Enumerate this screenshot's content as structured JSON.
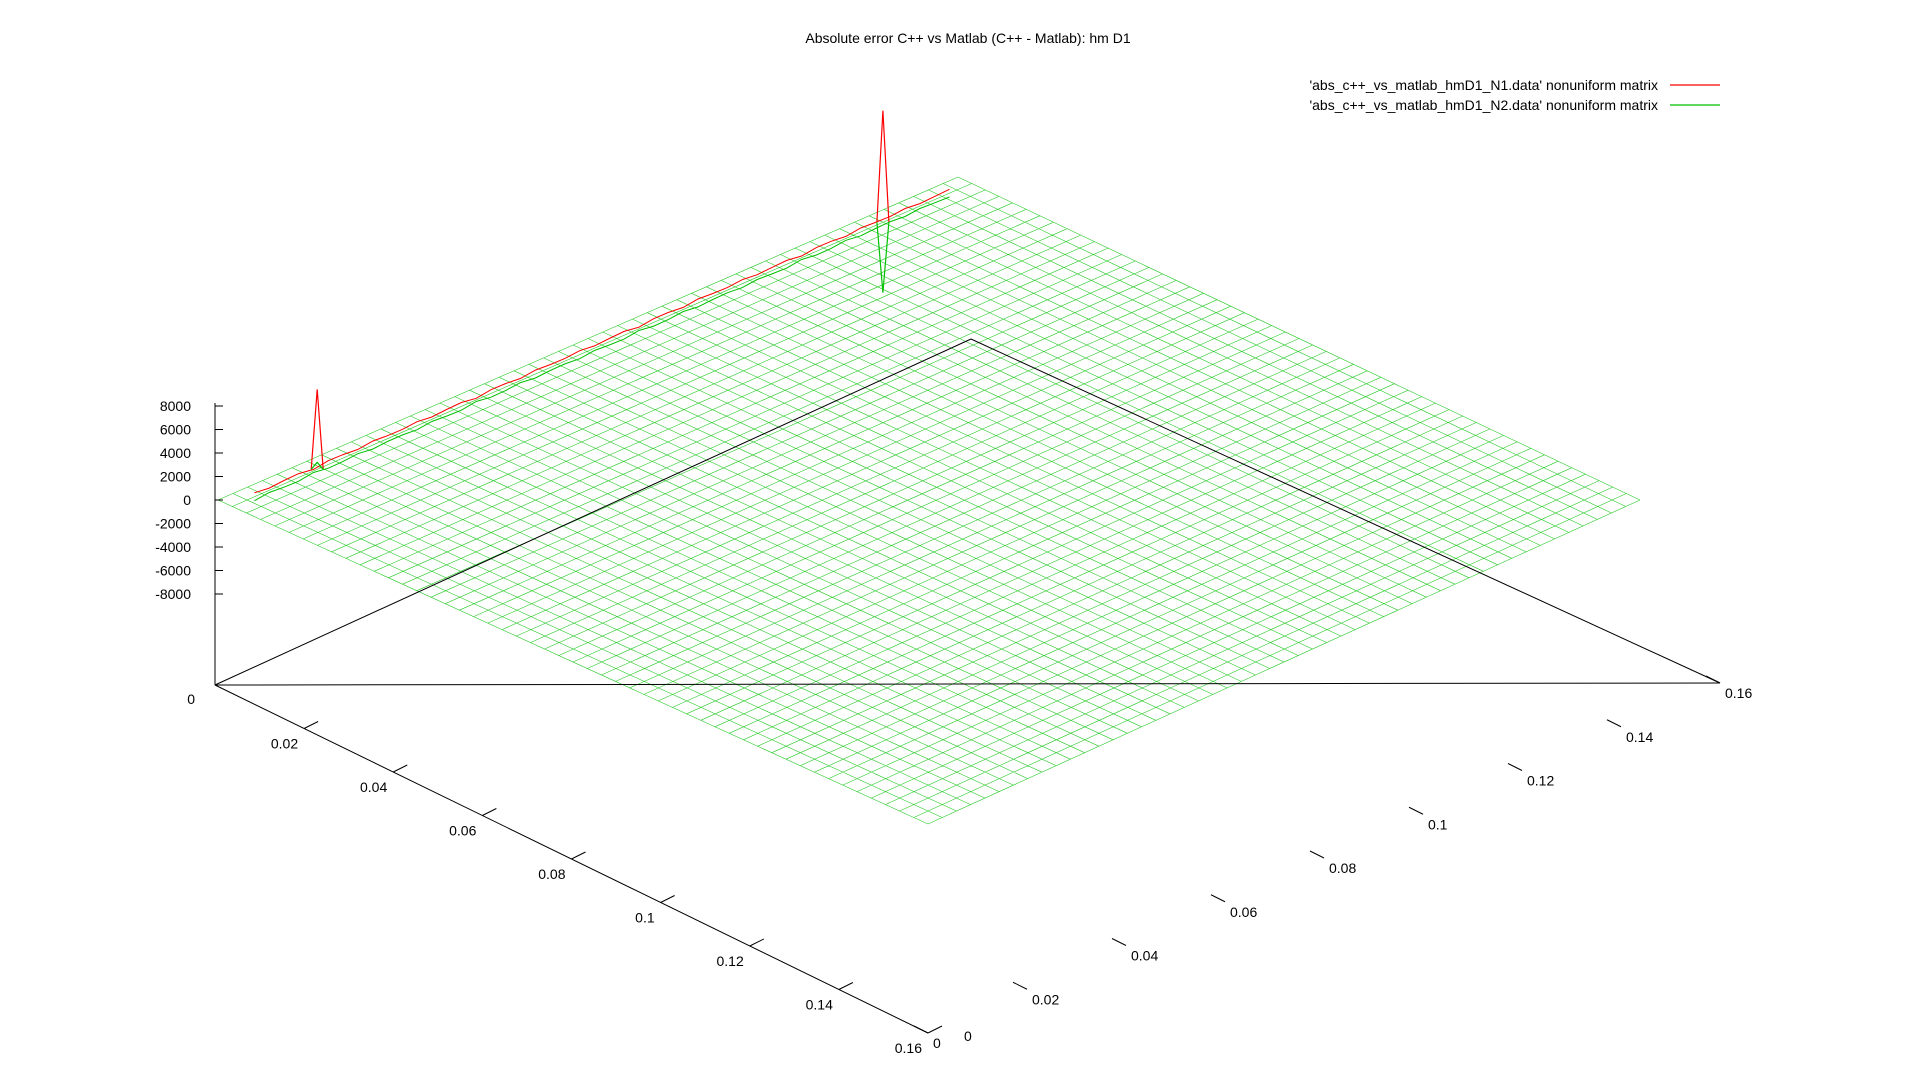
{
  "chart_data": {
    "type": "surface",
    "title": "Absolute error C++ vs Matlab (C++ - Matlab): hm D1",
    "x_ticks": [
      0,
      0.02,
      0.04,
      0.06,
      0.08,
      0.1,
      0.12,
      0.14,
      0.16
    ],
    "y_ticks": [
      0.02,
      0.04,
      0.06,
      0.08,
      0.1,
      0.12,
      0.14,
      0.16
    ],
    "y_origin_label": "0",
    "z_ticks": [
      8000,
      6000,
      4000,
      2000,
      0,
      -2000,
      -4000,
      -6000,
      -8000
    ],
    "z_base_label": "0",
    "xlim": [
      0,
      0.16
    ],
    "ylim": [
      0,
      0.16
    ],
    "zlim": [
      -8000,
      8000
    ],
    "grid": false,
    "legend_position": "top-right",
    "series": [
      {
        "name": "'abs_c++_vs_matlab_hmD1_N1.data' nonuniform matrix",
        "color": "#ff0000",
        "baseline": 0,
        "spikes": [
          {
            "t": 0.115,
            "z": 6800
          },
          {
            "t": 0.88,
            "z": 9500
          }
        ]
      },
      {
        "name": "'abs_c++_vs_matlab_hmD1_N2.data' nonuniform matrix",
        "color": "#00c000",
        "baseline": 0,
        "spikes": [
          {
            "t": 0.115,
            "z": 600
          },
          {
            "t": 0.88,
            "z": -6000
          }
        ]
      }
    ]
  }
}
